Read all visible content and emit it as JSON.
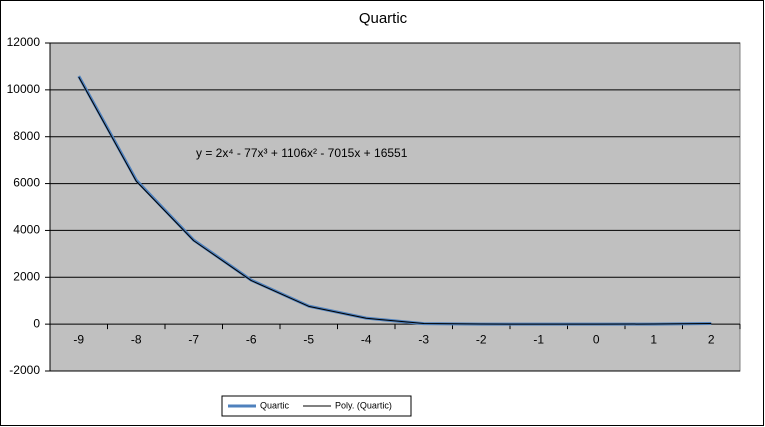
{
  "chart_data": {
    "type": "line",
    "title": "Quartic",
    "categories": [
      "-9",
      "-8",
      "-7",
      "-6",
      "-5",
      "-4",
      "-3",
      "-2",
      "-1",
      "0",
      "1",
      "2"
    ],
    "series": [
      {
        "name": "Quartic",
        "color": "#4f81bd",
        "values": [
          10585,
          6146,
          3585,
          1878,
          768,
          256,
          20,
          0,
          0,
          0,
          0,
          30
        ]
      },
      {
        "name": "Poly. (Quartic)",
        "color": "#000000",
        "values": [
          10550,
          6100,
          3560,
          1860,
          760,
          250,
          25,
          5,
          0,
          0,
          5,
          25
        ]
      }
    ],
    "ylim": [
      -2000,
      12000
    ],
    "yticks": [
      -2000,
      0,
      2000,
      4000,
      6000,
      8000,
      10000,
      12000
    ],
    "grid": true,
    "legend": "bottom",
    "annotation": "y = 2x⁴ - 77x³ + 1106x² - 7015x  + 16551"
  }
}
